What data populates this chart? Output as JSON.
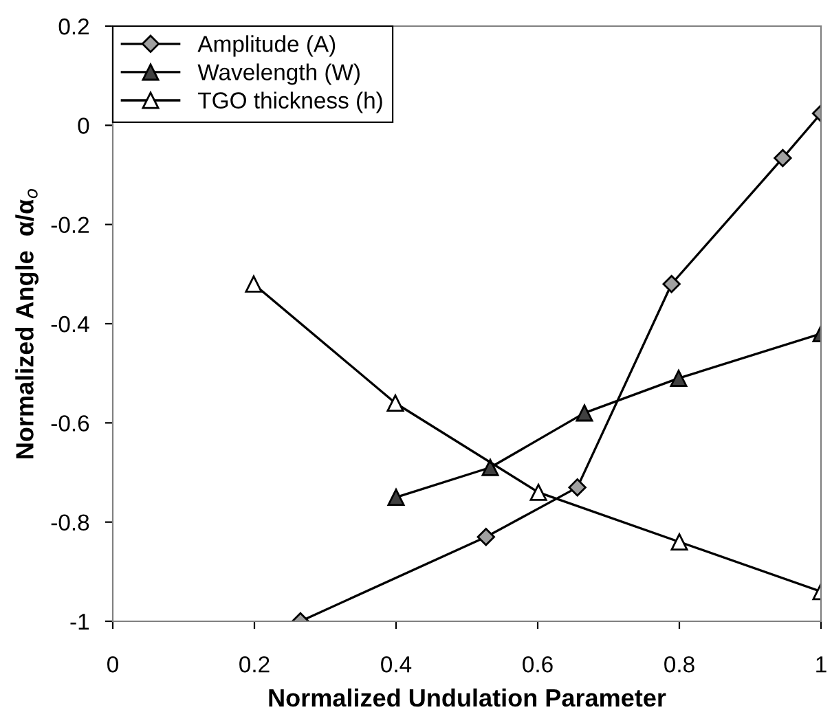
{
  "chart_data": {
    "type": "line",
    "xlabel": "Normalized Undulation Parameter",
    "ylabel": "Normalized Angle  α/α$_{o}$",
    "xlim": [
      0,
      1
    ],
    "ylim": [
      -1,
      0.2
    ],
    "xticks": [
      0,
      0.2,
      0.4,
      0.6,
      0.8,
      1
    ],
    "yticks": [
      -1,
      -0.8,
      -0.6,
      -0.4,
      -0.2,
      0,
      0.2
    ],
    "grid": false,
    "legend": "top left",
    "line_style": "solid",
    "series": [
      {
        "name": "Amplitude (A)",
        "color": "#000000",
        "marker": "diamond",
        "x": [
          0.265,
          0.527,
          0.656,
          0.789,
          0.946,
          1.0
        ],
        "values": [
          -1.0,
          -0.83,
          -0.73,
          -0.32,
          -0.066,
          0.024
        ]
      },
      {
        "name": "Wavelength (W)",
        "color": "#000000",
        "marker": "triangle",
        "x": [
          0.4,
          0.533,
          0.666,
          0.799,
          1.0
        ],
        "values": [
          -0.75,
          -0.69,
          -0.58,
          -0.51,
          -0.42
        ]
      },
      {
        "name": "TGO thickness (h)",
        "color": "#000000",
        "marker": "triangle",
        "x": [
          0.199,
          0.399,
          0.601,
          0.8,
          1.0
        ],
        "values": [
          -0.32,
          -0.56,
          -0.74,
          -0.84,
          -0.94
        ]
      }
    ]
  }
}
